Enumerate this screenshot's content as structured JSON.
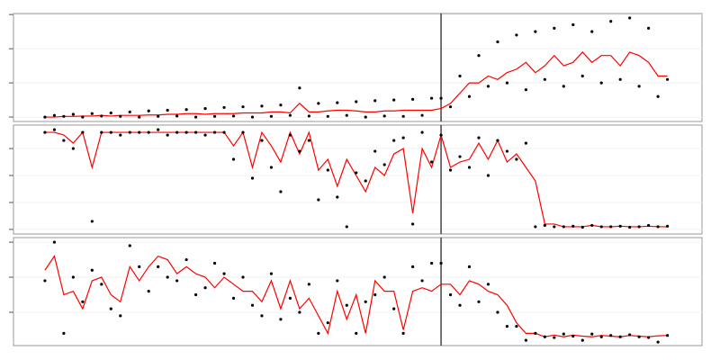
{
  "chart_data": [
    {
      "type": "line",
      "xlim": [
        -10,
        209
      ],
      "ylim": [
        -0.13,
        3.03
      ],
      "yticks": [
        0,
        1,
        2,
        3
      ],
      "grid": true,
      "vline": 126,
      "x": [
        0,
        3,
        6,
        9,
        12,
        15,
        18,
        21,
        24,
        27,
        30,
        33,
        36,
        39,
        42,
        45,
        48,
        51,
        54,
        57,
        60,
        63,
        66,
        69,
        72,
        75,
        78,
        81,
        84,
        87,
        90,
        93,
        96,
        99,
        102,
        105,
        108,
        111,
        114,
        117,
        120,
        123,
        126,
        129,
        132,
        135,
        138,
        141,
        144,
        147,
        150,
        153,
        156,
        159,
        162,
        165,
        168,
        171,
        174,
        177,
        180,
        183,
        186,
        189,
        192,
        195,
        198
      ],
      "series": [
        {
          "style": "points",
          "color": "#000000",
          "values": [
            0,
            0.05,
            0.02,
            0.08,
            0,
            0.1,
            0.03,
            0.12,
            0.02,
            0.15,
            0,
            0.18,
            0.02,
            0.2,
            0.03,
            0.22,
            0,
            0.25,
            0.02,
            0.28,
            0.03,
            0.3,
            0,
            0.32,
            0.02,
            0.35,
            0.05,
            0.85,
            0.03,
            0.4,
            0.02,
            0.42,
            0.05,
            0.45,
            0,
            0.48,
            0.03,
            0.5,
            0.02,
            0.52,
            0.05,
            0.55,
            0.55,
            0.3,
            1.2,
            0.6,
            1.8,
            0.9,
            2.2,
            1.0,
            2.4,
            0.8,
            2.5,
            1.1,
            2.6,
            0.9,
            2.7,
            1.2,
            2.5,
            1.0,
            2.8,
            1.1,
            2.9,
            0.9,
            2.6,
            0.6,
            1.1
          ]
        },
        {
          "style": "line",
          "color": "#ff0000",
          "values": [
            0,
            0,
            0.02,
            0.02,
            0.03,
            0.03,
            0.05,
            0.03,
            0.05,
            0.05,
            0.05,
            0.06,
            0.06,
            0.08,
            0.08,
            0.1,
            0.1,
            0.08,
            0.1,
            0.1,
            0.1,
            0.12,
            0.12,
            0.12,
            0.15,
            0.15,
            0.12,
            0.4,
            0.15,
            0.15,
            0.18,
            0.2,
            0.2,
            0.18,
            0.15,
            0.15,
            0.18,
            0.18,
            0.2,
            0.2,
            0.2,
            0.2,
            0.25,
            0.4,
            0.7,
            1.0,
            1.0,
            1.2,
            1.1,
            1.3,
            1.4,
            1.6,
            1.3,
            1.5,
            1.8,
            1.5,
            1.6,
            1.9,
            1.6,
            1.8,
            1.8,
            1.5,
            1.9,
            1.8,
            1.6,
            1.2,
            1.2
          ]
        }
      ]
    },
    {
      "type": "line",
      "xlim": [
        -10,
        209
      ],
      "ylim": [
        -0.17,
        3.87
      ],
      "yticks": [
        0,
        1,
        2,
        3
      ],
      "grid": true,
      "vline": 126,
      "x": [
        0,
        3,
        6,
        9,
        12,
        15,
        18,
        21,
        24,
        27,
        30,
        33,
        36,
        39,
        42,
        45,
        48,
        51,
        54,
        57,
        60,
        63,
        66,
        69,
        72,
        75,
        78,
        81,
        84,
        87,
        90,
        93,
        96,
        99,
        102,
        105,
        108,
        111,
        114,
        117,
        120,
        123,
        126,
        129,
        132,
        135,
        138,
        141,
        144,
        147,
        150,
        153,
        156,
        159,
        162,
        165,
        168,
        171,
        174,
        177,
        180,
        183,
        186,
        189,
        192,
        195,
        198
      ],
      "series": [
        {
          "style": "points",
          "color": "#000000",
          "values": [
            3.6,
            3.7,
            3.3,
            3.0,
            3.6,
            0.3,
            3.6,
            3.6,
            3.5,
            3.6,
            3.6,
            3.6,
            3.7,
            3.5,
            3.6,
            3.6,
            3.6,
            3.5,
            3.6,
            3.6,
            2.6,
            3.6,
            1.9,
            3.3,
            2.3,
            1.4,
            3.5,
            2.9,
            3.3,
            1.1,
            2.2,
            1.2,
            0.1,
            2.1,
            1.8,
            2.9,
            2.4,
            3.3,
            3.4,
            0.2,
            3.6,
            2.5,
            3.5,
            2.2,
            2.7,
            2.3,
            3.4,
            2.0,
            3.3,
            2.9,
            2.6,
            3.2,
            0.1,
            0.15,
            0.1,
            0.1,
            0.12,
            0.08,
            0.15,
            0.1,
            0.1,
            0.12,
            0.08,
            0.1,
            0.15,
            0.1,
            0.12
          ]
        },
        {
          "style": "line",
          "color": "#ff0000",
          "values": [
            3.6,
            3.6,
            3.5,
            3.2,
            3.6,
            2.3,
            3.6,
            3.6,
            3.6,
            3.6,
            3.6,
            3.6,
            3.6,
            3.6,
            3.6,
            3.6,
            3.6,
            3.6,
            3.6,
            3.6,
            3.1,
            3.6,
            2.3,
            3.6,
            3.1,
            2.5,
            3.6,
            2.8,
            3.6,
            2.2,
            2.6,
            1.6,
            2.6,
            2.0,
            1.4,
            2.3,
            2.0,
            2.8,
            3.0,
            0.6,
            3.0,
            2.3,
            3.5,
            2.3,
            2.5,
            2.6,
            3.2,
            2.6,
            3.3,
            2.5,
            2.8,
            2.3,
            1.8,
            0.2,
            0.2,
            0.1,
            0.1,
            0.1,
            0.15,
            0.1,
            0.1,
            0.12,
            0.1,
            0.1,
            0.12,
            0.1,
            0.1
          ]
        }
      ]
    },
    {
      "type": "line",
      "xlim": [
        -10,
        209
      ],
      "ylim": [
        -0.95,
        2.13
      ],
      "yticks": [
        0,
        1,
        2
      ],
      "grid": true,
      "vline": 126,
      "x": [
        0,
        3,
        6,
        9,
        12,
        15,
        18,
        21,
        24,
        27,
        30,
        33,
        36,
        39,
        42,
        45,
        48,
        51,
        54,
        57,
        60,
        63,
        66,
        69,
        72,
        75,
        78,
        81,
        84,
        87,
        90,
        93,
        96,
        99,
        102,
        105,
        108,
        111,
        114,
        117,
        120,
        123,
        126,
        129,
        132,
        135,
        138,
        141,
        144,
        147,
        150,
        153,
        156,
        159,
        162,
        165,
        168,
        171,
        174,
        177,
        180,
        183,
        186,
        189,
        192,
        195,
        198
      ],
      "series": [
        {
          "style": "points",
          "color": "#000000",
          "values": [
            0.9,
            2.0,
            -0.6,
            1.0,
            0.3,
            1.2,
            0.8,
            0.1,
            -0.1,
            1.9,
            1.3,
            0.6,
            1.3,
            1.0,
            0.9,
            1.5,
            0.5,
            0.7,
            1.4,
            1.1,
            0.4,
            1.0,
            0.2,
            -0.1,
            1.1,
            -0.2,
            0.4,
            0.0,
            0.8,
            -0.6,
            -0.3,
            0.9,
            0.2,
            -0.6,
            0.3,
            0.5,
            1.0,
            0.1,
            -0.6,
            1.3,
            0.9,
            1.4,
            1.4,
            0.5,
            0.2,
            1.3,
            0.3,
            0.8,
            0.0,
            -0.4,
            -0.4,
            -0.8,
            -0.6,
            -0.7,
            -0.72,
            -0.62,
            -0.68,
            -0.8,
            -0.62,
            -0.7,
            -0.66,
            -0.7,
            -0.64,
            -0.7,
            -0.72,
            -0.85,
            -0.66
          ]
        },
        {
          "style": "line",
          "color": "#ff0000",
          "values": [
            1.2,
            1.6,
            0.5,
            0.6,
            0.1,
            0.9,
            1.0,
            0.5,
            0.3,
            1.3,
            0.9,
            1.3,
            1.6,
            1.5,
            1.1,
            1.3,
            1.1,
            1.0,
            0.7,
            1.0,
            0.8,
            0.6,
            0.6,
            0.3,
            0.9,
            0.1,
            0.9,
            0.1,
            0.4,
            -0.1,
            -0.6,
            0.6,
            -0.2,
            0.5,
            -0.6,
            0.9,
            0.6,
            0.6,
            -0.5,
            0.6,
            0.7,
            0.6,
            0.8,
            0.8,
            0.5,
            0.9,
            0.8,
            0.6,
            0.5,
            0.2,
            -0.3,
            -0.6,
            -0.6,
            -0.7,
            -0.65,
            -0.7,
            -0.65,
            -0.68,
            -0.7,
            -0.66,
            -0.68,
            -0.7,
            -0.66,
            -0.68,
            -0.7,
            -0.67,
            -0.66
          ]
        }
      ]
    }
  ]
}
